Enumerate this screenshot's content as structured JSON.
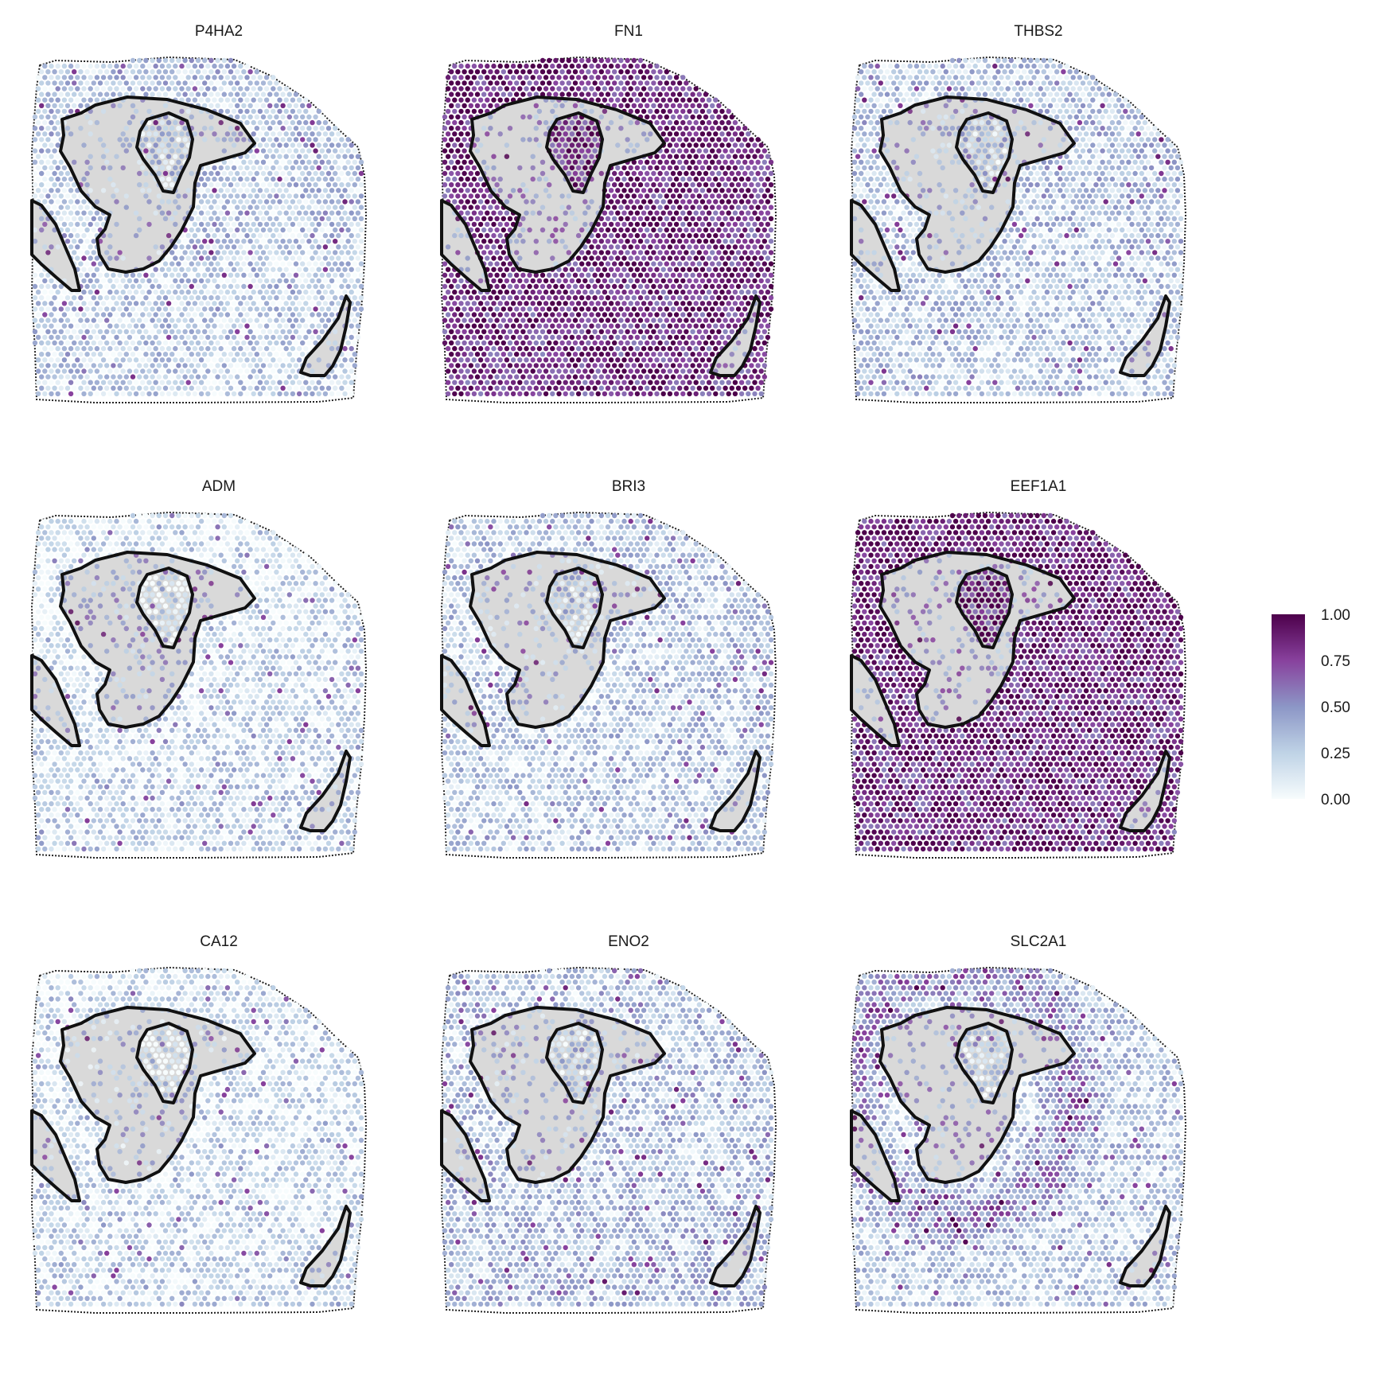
{
  "chart_data": {
    "type": "heatmap",
    "description_kind": "spatial transcriptomics spot map, 3x3 facets",
    "panels": [
      {
        "title": "P4HA2",
        "mean": 0.3,
        "inside": 0.35,
        "halo": 0.0,
        "bottom": 0.2,
        "outer": 0.28
      },
      {
        "title": "FN1",
        "mean": 0.8,
        "inside": 0.5,
        "halo": 0.0,
        "bottom": 0.8,
        "outer": 0.85
      },
      {
        "title": "THBS2",
        "mean": 0.3,
        "inside": 0.38,
        "halo": 0.0,
        "bottom": 0.22,
        "outer": 0.28
      },
      {
        "title": "ADM",
        "mean": 0.18,
        "inside": 0.4,
        "halo": 0.0,
        "bottom": 0.18,
        "outer": 0.1
      },
      {
        "title": "BRI3",
        "mean": 0.25,
        "inside": 0.35,
        "halo": 0.0,
        "bottom": 0.22,
        "outer": 0.25
      },
      {
        "title": "EEF1A1",
        "mean": 0.82,
        "inside": 0.5,
        "halo": 0.0,
        "bottom": 0.8,
        "outer": 0.85
      },
      {
        "title": "CA12",
        "mean": 0.18,
        "inside": 0.3,
        "halo": 0.0,
        "bottom": 0.15,
        "outer": 0.12
      },
      {
        "title": "ENO2",
        "mean": 0.28,
        "inside": 0.35,
        "halo": 0.0,
        "bottom": 0.3,
        "outer": 0.22
      },
      {
        "title": "SLC2A1",
        "mean": 0.35,
        "inside": 0.45,
        "halo": 0.45,
        "bottom": 0.2,
        "outer": 0.22
      }
    ],
    "legend": {
      "position": "right",
      "range": [
        0,
        1
      ],
      "ticks": [
        "1.00",
        "0.75",
        "0.50",
        "0.25",
        "0.00"
      ],
      "colors": [
        "#f7fcfd",
        "#bfd3e6",
        "#8c96c6",
        "#88419d",
        "#4d004b"
      ]
    },
    "region_fill": "#d9d9d9",
    "outline_color": "#111111"
  }
}
